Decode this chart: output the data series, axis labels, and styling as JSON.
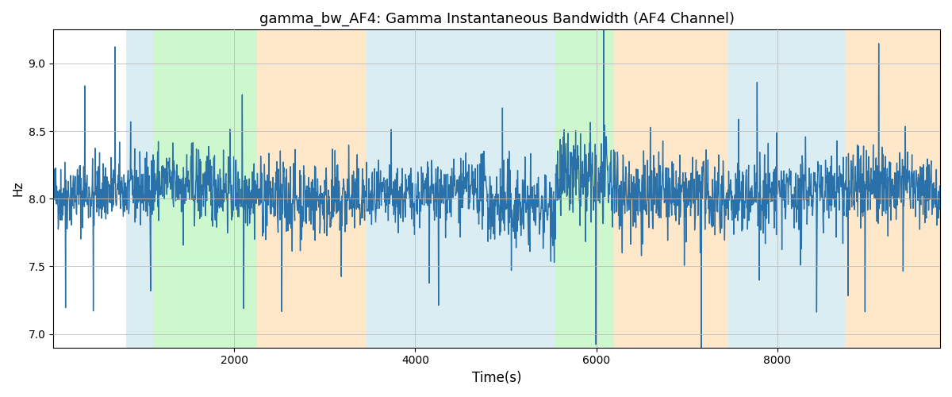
{
  "title": "gamma_bw_AF4: Gamma Instantaneous Bandwidth (AF4 Channel)",
  "xlabel": "Time(s)",
  "ylabel": "Hz",
  "xlim": [
    0,
    9800
  ],
  "ylim": [
    6.9,
    9.25
  ],
  "yticks": [
    7.0,
    7.5,
    8.0,
    8.5,
    9.0
  ],
  "xticks": [
    2000,
    4000,
    6000,
    8000
  ],
  "line_color": "#2971a8",
  "line_width": 1.0,
  "bg_color": "#ffffff",
  "grid_color": "#bbbbbb",
  "seed": 42,
  "n_points": 2400,
  "base_value": 8.02,
  "noise_std": 0.13,
  "colored_bands": [
    {
      "xmin": 800,
      "xmax": 1100,
      "color": "#add8e6",
      "alpha": 0.45
    },
    {
      "xmin": 1100,
      "xmax": 2250,
      "color": "#90ee90",
      "alpha": 0.45
    },
    {
      "xmin": 2250,
      "xmax": 3450,
      "color": "#ffd59e",
      "alpha": 0.55
    },
    {
      "xmin": 3450,
      "xmax": 5550,
      "color": "#add8e6",
      "alpha": 0.45
    },
    {
      "xmin": 5550,
      "xmax": 5800,
      "color": "#90ee90",
      "alpha": 0.45
    },
    {
      "xmin": 5800,
      "xmax": 6200,
      "color": "#90ee90",
      "alpha": 0.45
    },
    {
      "xmin": 6200,
      "xmax": 7450,
      "color": "#ffd59e",
      "alpha": 0.55
    },
    {
      "xmin": 7450,
      "xmax": 8750,
      "color": "#add8e6",
      "alpha": 0.45
    },
    {
      "xmin": 8750,
      "xmax": 9800,
      "color": "#ffd59e",
      "alpha": 0.55
    }
  ],
  "segment_mods": [
    {
      "tmin": 0,
      "tmax": 1100,
      "mean_shift": 0.0,
      "amp_scale": 1.0
    },
    {
      "tmin": 1100,
      "tmax": 2250,
      "mean_shift": 0.05,
      "amp_scale": 1.1
    },
    {
      "tmin": 2250,
      "tmax": 3450,
      "mean_shift": 0.02,
      "amp_scale": 1.1
    },
    {
      "tmin": 3450,
      "tmax": 4800,
      "mean_shift": 0.0,
      "amp_scale": 0.9
    },
    {
      "tmin": 4800,
      "tmax": 5550,
      "mean_shift": -0.12,
      "amp_scale": 1.2
    },
    {
      "tmin": 5550,
      "tmax": 6200,
      "mean_shift": 0.1,
      "amp_scale": 1.3
    },
    {
      "tmin": 6200,
      "tmax": 7450,
      "mean_shift": 0.05,
      "amp_scale": 1.2
    },
    {
      "tmin": 7450,
      "tmax": 8750,
      "mean_shift": 0.02,
      "amp_scale": 1.1
    },
    {
      "tmin": 8750,
      "tmax": 9800,
      "mean_shift": 0.03,
      "amp_scale": 1.1
    }
  ]
}
